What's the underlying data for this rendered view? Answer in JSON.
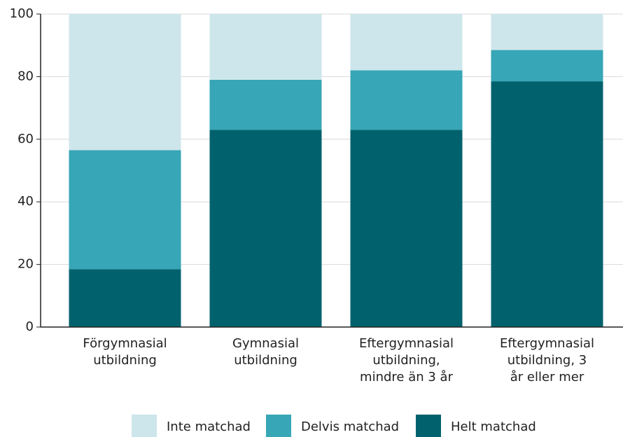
{
  "chart_data": {
    "type": "stacked_bar",
    "categories": [
      "Förgymnasial utbildning",
      "Gymnasial utbildning",
      "Eftergymnasial utbildning, mindre än 3 år",
      "Eftergymnasial utbildning, 3 år eller mer"
    ],
    "series": [
      {
        "name": "Helt matchad",
        "color": "#01626e",
        "values": [
          18.5,
          63,
          63,
          78.5
        ]
      },
      {
        "name": "Delvis matchad",
        "color": "#37a6b6",
        "values": [
          38,
          16,
          19,
          10
        ]
      },
      {
        "name": "Inte matchad",
        "color": "#cde6eb",
        "values": [
          43.5,
          21,
          18,
          11.5
        ]
      }
    ],
    "ylim": [
      0,
      100
    ],
    "yticks": [
      0,
      20,
      40,
      60,
      80,
      100
    ],
    "grid": true,
    "legend": "bottom"
  }
}
